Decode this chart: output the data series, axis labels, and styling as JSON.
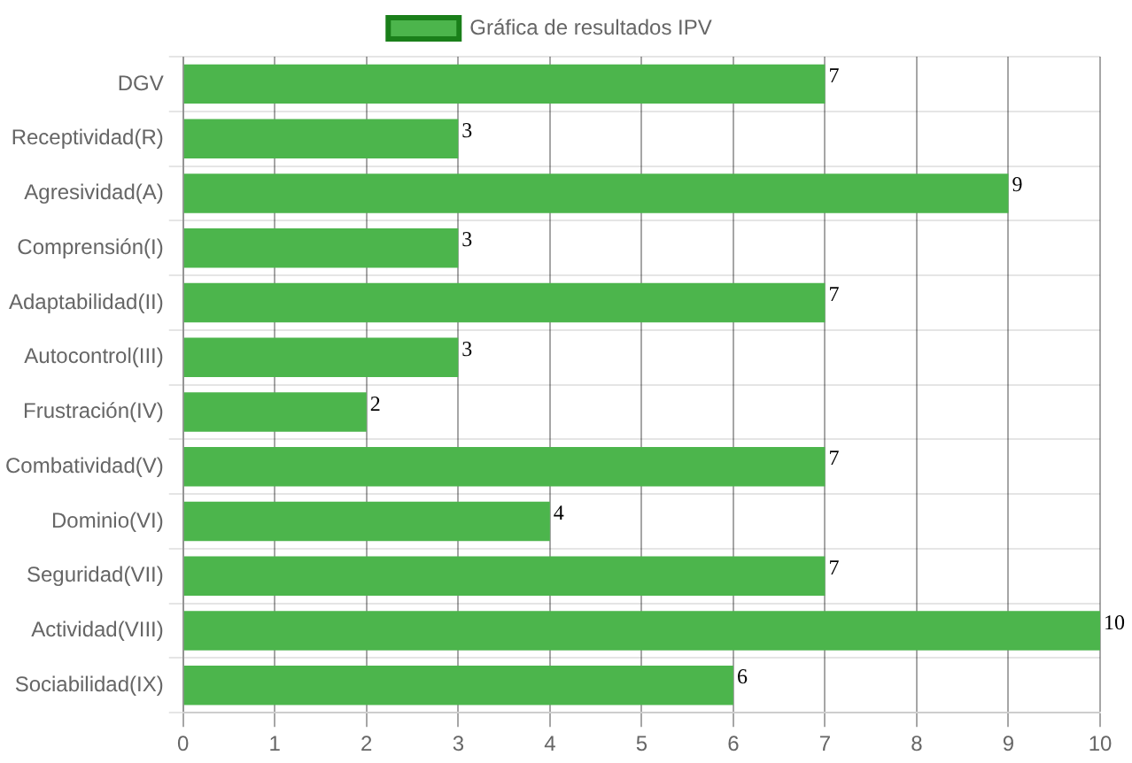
{
  "chart_data": {
    "type": "bar",
    "orientation": "horizontal",
    "categories": [
      "DGV",
      "Receptividad(R)",
      "Agresividad(A)",
      "Comprensión(I)",
      "Adaptabilidad(II)",
      "Autocontrol(III)",
      "Frustración(IV)",
      "Combatividad(V)",
      "Dominio(VI)",
      "Seguridad(VII)",
      "Actividad(VIII)",
      "Sociabilidad(IX)"
    ],
    "series": [
      {
        "name": "Gráfica de resultados IPV",
        "color": "#4cb54c",
        "values": [
          7,
          3,
          9,
          3,
          7,
          3,
          2,
          7,
          4,
          7,
          10,
          6
        ]
      }
    ],
    "xlim": [
      0,
      10
    ],
    "xticks": [
      0,
      1,
      2,
      3,
      4,
      5,
      6,
      7,
      8,
      9,
      10
    ],
    "grid": true,
    "legend": "top",
    "data_labels": true
  }
}
